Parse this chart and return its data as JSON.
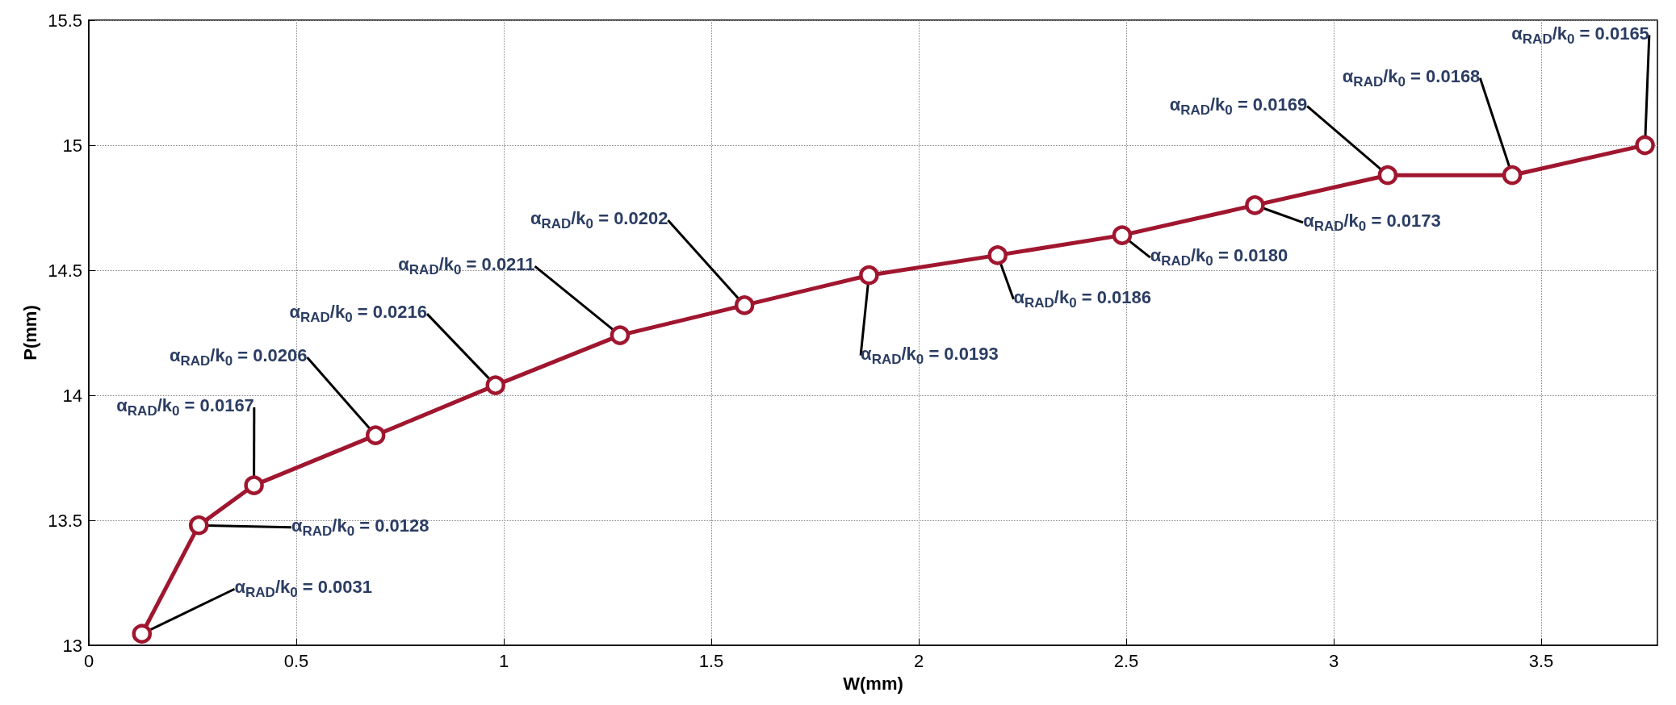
{
  "chart_data": {
    "type": "line",
    "xlabel": "W(mm)",
    "ylabel": "P(mm)",
    "x": [
      0.128,
      0.265,
      0.398,
      0.691,
      0.98,
      1.28,
      1.58,
      1.88,
      2.19,
      2.49,
      2.81,
      3.13,
      3.43,
      3.75
    ],
    "series": [
      {
        "color": "#a0162f",
        "values": [
          13.046,
          13.48,
          13.64,
          13.84,
          14.04,
          14.24,
          14.36,
          14.48,
          14.56,
          14.64,
          14.76,
          14.88,
          14.88,
          15.0
        ],
        "value_labels": [
          "α$_{RAD}$/k$_{0}$ = 0.0031",
          "α$_{RAD}$/k$_{0}$ = 0.0128",
          "α$_{RAD}$/k$_{0}$ = 0.0167",
          "α$_{RAD}$/k$_{0}$ = 0.0206",
          "α$_{RAD}$/k$_{0}$ = 0.0216",
          "α$_{RAD}$/k$_{0}$ = 0.0211",
          "α$_{RAD}$/k$_{0}$ = 0.0202",
          "α$_{RAD}$/k$_{0}$ = 0.0193",
          "α$_{RAD}$/k$_{0}$ = 0.0186",
          "α$_{RAD}$/k$_{0}$ = 0.0180",
          "α$_{RAD}$/k$_{0}$ = 0.0173",
          "α$_{RAD}$/k$_{0}$ = 0.0169",
          "α$_{RAD}$/k$_{0}$ = 0.0168",
          "α$_{RAD}$/k$_{0}$ = 0.0165"
        ]
      }
    ],
    "xlim": [
      0,
      3.78
    ],
    "xticks": [
      0,
      0.5,
      1,
      1.5,
      2,
      2.5,
      3,
      3.5
    ],
    "ylim": [
      13,
      15.5
    ],
    "yticks": [
      13,
      13.5,
      14,
      14.5,
      15,
      15.5
    ],
    "grid": true,
    "marker": "circle",
    "line_style": "solid"
  }
}
